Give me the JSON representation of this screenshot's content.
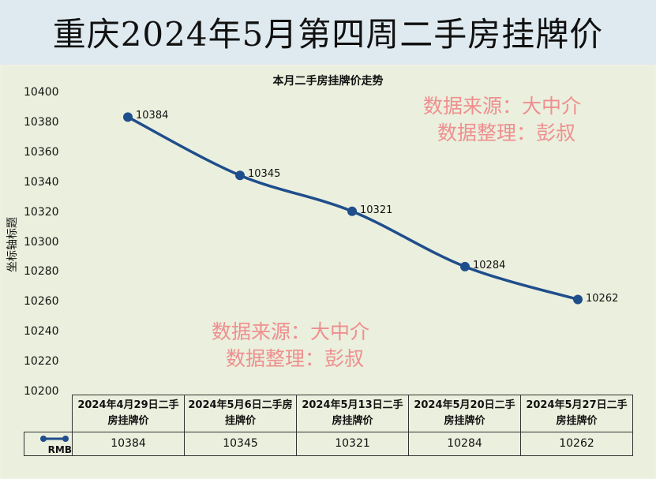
{
  "title": "重庆2024年5月第四周二手房挂牌价",
  "chart_data": {
    "type": "line",
    "title": "本月二手房挂牌价走势",
    "xlabel": "",
    "ylabel": "坐标轴标题",
    "ylim": [
      10200,
      10400
    ],
    "yticks": [
      "10400",
      "10380",
      "10360",
      "10340",
      "10320",
      "10300",
      "10280",
      "10260",
      "10240",
      "10220",
      "10200"
    ],
    "categories": [
      "2024年4月29日二手房挂牌价",
      "2024年5月6日二手房挂牌价",
      "2024年5月13日二手房挂牌价",
      "2024年5月20日二手房挂牌价",
      "2024年5月27日二手房挂牌价"
    ],
    "series": [
      {
        "name": "RMB",
        "values": [
          10384,
          10345,
          10321,
          10284,
          10262
        ]
      }
    ],
    "data_labels": [
      "10384",
      "10345",
      "10321",
      "10284",
      "10262"
    ],
    "grid": false,
    "legend": "data-table",
    "line_color": "#1f4e8c"
  },
  "watermarks": [
    {
      "line1": "数据来源：大中介",
      "line2": "数据整理：彭叔"
    },
    {
      "line1": "数据来源：大中介",
      "line2": "数据整理：彭叔"
    }
  ]
}
